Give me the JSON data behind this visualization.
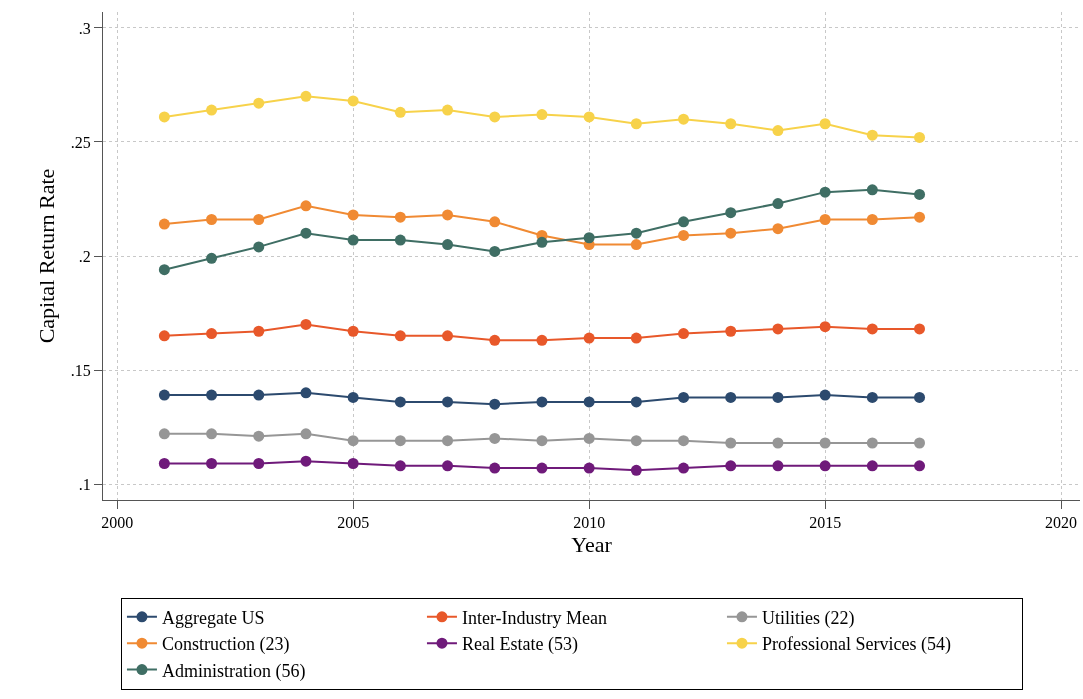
{
  "chart_data": {
    "type": "line",
    "xlabel": "Year",
    "ylabel": "Capital Return Rate",
    "x": [
      2001,
      2002,
      2003,
      2004,
      2005,
      2006,
      2007,
      2008,
      2009,
      2010,
      2011,
      2012,
      2013,
      2014,
      2015,
      2016,
      2017
    ],
    "xlim": [
      1999.7,
      2020.4
    ],
    "xticks": [
      2000,
      2005,
      2010,
      2015,
      2020
    ],
    "ylim": [
      0.093,
      0.307
    ],
    "yticks": [
      {
        "value": 0.1,
        "label": ".1"
      },
      {
        "value": 0.15,
        "label": ".15"
      },
      {
        "value": 0.2,
        "label": ".2"
      },
      {
        "value": 0.25,
        "label": ".25"
      },
      {
        "value": 0.3,
        "label": ".3"
      }
    ],
    "grid": true,
    "legend": "bottom",
    "marker": "circle",
    "line_style": "solid",
    "series": [
      {
        "name": "Aggregate US",
        "color": "#2c4a6e",
        "values": [
          0.139,
          0.139,
          0.139,
          0.14,
          0.138,
          0.136,
          0.136,
          0.135,
          0.136,
          0.136,
          0.136,
          0.138,
          0.138,
          0.138,
          0.139,
          0.138,
          0.138
        ]
      },
      {
        "name": "Inter-Industry Mean",
        "color": "#e8582a",
        "values": [
          0.165,
          0.166,
          0.167,
          0.17,
          0.167,
          0.165,
          0.165,
          0.163,
          0.163,
          0.164,
          0.164,
          0.166,
          0.167,
          0.168,
          0.169,
          0.168,
          0.168
        ]
      },
      {
        "name": "Utilities (22)",
        "color": "#969696",
        "values": [
          0.122,
          0.122,
          0.121,
          0.122,
          0.119,
          0.119,
          0.119,
          0.12,
          0.119,
          0.12,
          0.119,
          0.119,
          0.118,
          0.118,
          0.118,
          0.118,
          0.118
        ]
      },
      {
        "name": "Construction (23)",
        "color": "#f08a33",
        "values": [
          0.214,
          0.216,
          0.216,
          0.222,
          0.218,
          0.217,
          0.218,
          0.215,
          0.209,
          0.205,
          0.205,
          0.209,
          0.21,
          0.212,
          0.216,
          0.216,
          0.217
        ]
      },
      {
        "name": "Real Estate (53)",
        "color": "#6f1a7a",
        "values": [
          0.109,
          0.109,
          0.109,
          0.11,
          0.109,
          0.108,
          0.108,
          0.107,
          0.107,
          0.107,
          0.106,
          0.107,
          0.108,
          0.108,
          0.108,
          0.108,
          0.108
        ]
      },
      {
        "name": "Professional Services (54)",
        "color": "#f7d24a",
        "values": [
          0.261,
          0.264,
          0.267,
          0.27,
          0.268,
          0.263,
          0.264,
          0.261,
          0.262,
          0.261,
          0.258,
          0.26,
          0.258,
          0.255,
          0.258,
          0.253,
          0.252
        ]
      },
      {
        "name": "Administration (56)",
        "color": "#3f6e64",
        "values": [
          0.194,
          0.199,
          0.204,
          0.21,
          0.207,
          0.207,
          0.205,
          0.202,
          0.206,
          0.208,
          0.21,
          0.215,
          0.219,
          0.223,
          0.228,
          0.229,
          0.227
        ]
      }
    ]
  }
}
